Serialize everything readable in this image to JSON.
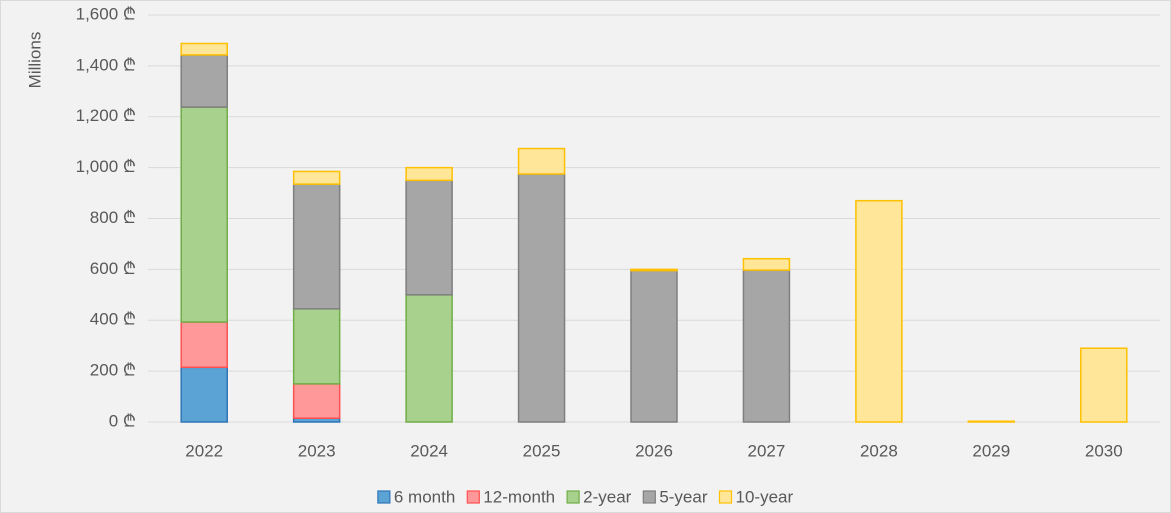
{
  "chart_data": {
    "type": "stacked_bar",
    "y_label": "Millions",
    "categories": [
      "2022",
      "2023",
      "2024",
      "2025",
      "2026",
      "2027",
      "2028",
      "2029",
      "2030"
    ],
    "series": [
      {
        "name": "6 month",
        "color": "#5ba3d5",
        "stroke": "#2e75b6",
        "values": [
          215,
          15,
          0,
          0,
          0,
          0,
          0,
          0,
          0
        ]
      },
      {
        "name": "12-month",
        "color": "#ff9999",
        "stroke": "#ff5050",
        "values": [
          178,
          135,
          0,
          0,
          0,
          0,
          0,
          0,
          0
        ]
      },
      {
        "name": "2-year",
        "color": "#a9d18e",
        "stroke": "#70ad47",
        "values": [
          845,
          295,
          500,
          0,
          0,
          0,
          0,
          0,
          0
        ]
      },
      {
        "name": "5-year",
        "color": "#a6a6a6",
        "stroke": "#7f7f7f",
        "values": [
          205,
          490,
          450,
          975,
          595,
          597,
          0,
          0,
          0
        ]
      },
      {
        "name": "10-year",
        "color": "#ffe699",
        "stroke": "#ffc000",
        "values": [
          45,
          50,
          50,
          100,
          5,
          45,
          870,
          3,
          290
        ]
      }
    ],
    "ylim": [
      0,
      1600
    ],
    "yticks": [
      {
        "value": 0,
        "label": "0 ₾"
      },
      {
        "value": 200,
        "label": "200 ₾"
      },
      {
        "value": 400,
        "label": "400 ₾"
      },
      {
        "value": 600,
        "label": "600 ₾"
      },
      {
        "value": 800,
        "label": "800 ₾"
      },
      {
        "value": 1000,
        "label": "1,000 ₾"
      },
      {
        "value": 1200,
        "label": "1,200 ₾"
      },
      {
        "value": 1400,
        "label": "1,400 ₾"
      },
      {
        "value": 1600,
        "label": "1,600 ₾"
      }
    ],
    "grid": true,
    "legend": "bottom"
  }
}
